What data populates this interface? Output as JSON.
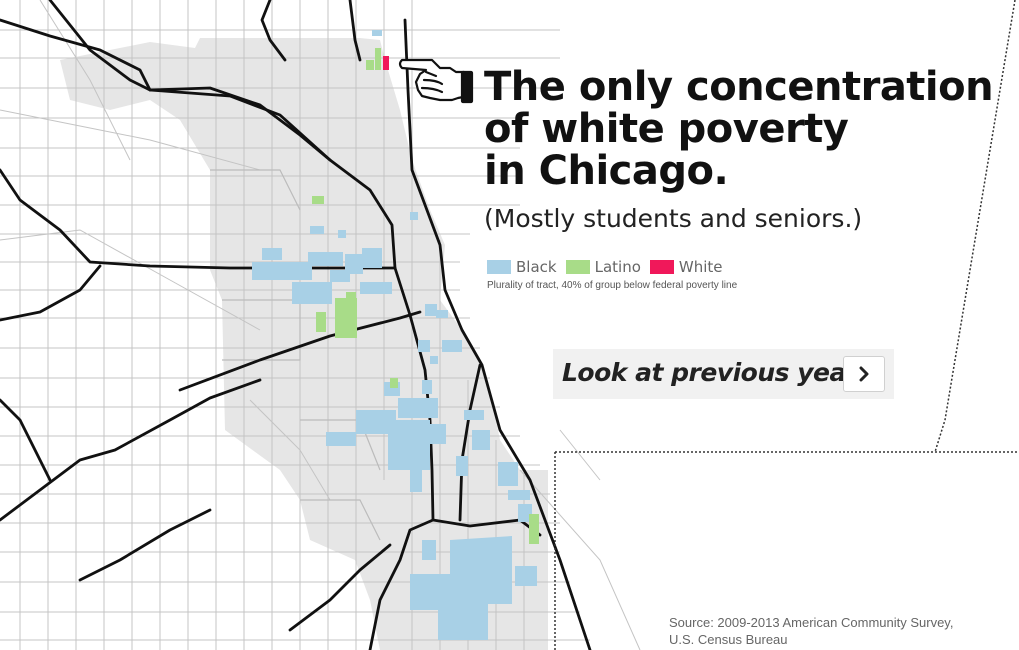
{
  "title_lines": [
    "The only concentration",
    "of white poverty",
    "in Chicago."
  ],
  "subtitle": "(Mostly students and seniors.)",
  "legend": {
    "items": [
      {
        "label": "Black",
        "color": "#a8d0e6"
      },
      {
        "label": "Latino",
        "color": "#a8dc88"
      },
      {
        "label": "White",
        "color": "#f0185a"
      }
    ],
    "note": "Plurality of tract, 40% of group below federal poverty line"
  },
  "previous_years": {
    "label": "Look at previous years",
    "icon": "chevron-right-icon"
  },
  "source_lines": [
    "Source: 2009-2013 American Community Survey,",
    "U.S. Census Bureau"
  ],
  "colors": {
    "city_fill": "#e6e6e6",
    "street": "#bdbdbd",
    "highway": "#111111",
    "boundary": "#333333"
  }
}
